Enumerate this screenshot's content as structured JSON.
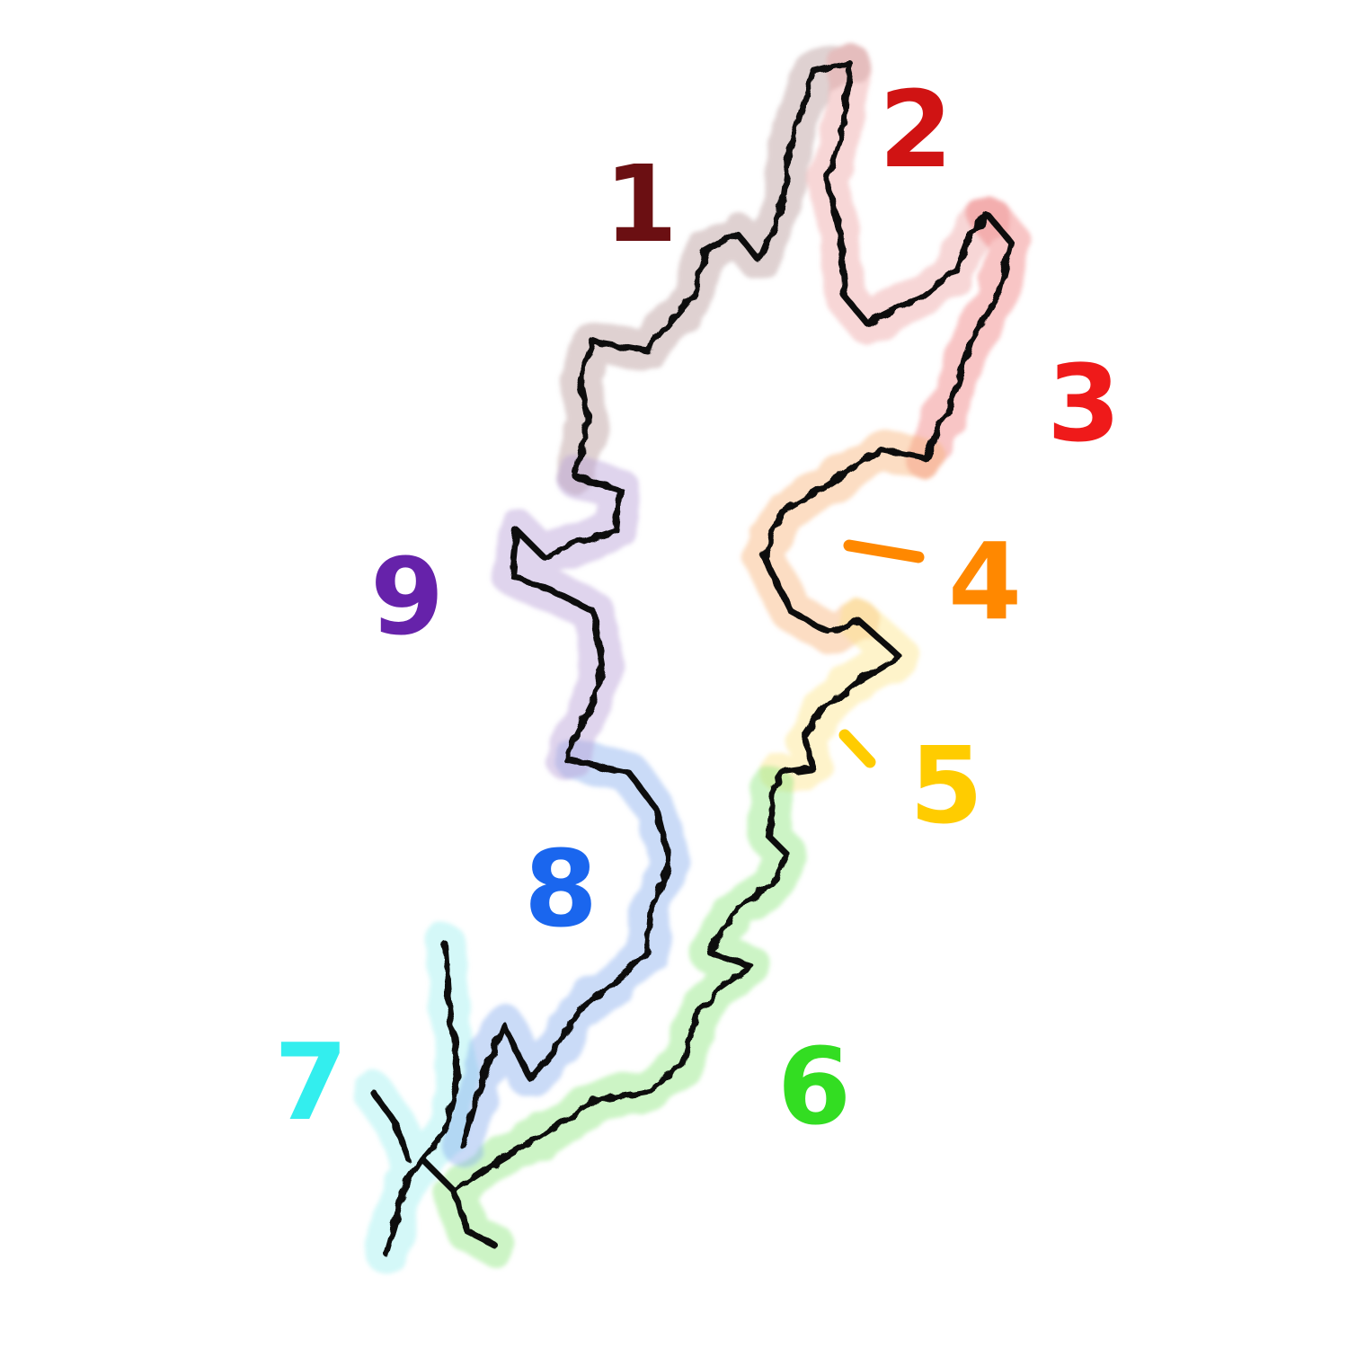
{
  "segments": [
    {
      "label": "1",
      "color": "#6b0f12",
      "glow": "#b99a9a"
    },
    {
      "label": "2",
      "color": "#d01313",
      "glow": "#eda5a5"
    },
    {
      "label": "3",
      "color": "#ef1a1a",
      "glow": "#f07e7e"
    },
    {
      "label": "4",
      "color": "#ff8800",
      "glow": "#f8b37a"
    },
    {
      "label": "5",
      "color": "#ffcc00",
      "glow": "#fde58a"
    },
    {
      "label": "6",
      "color": "#33dd22",
      "glow": "#8ee67e"
    },
    {
      "label": "7",
      "color": "#33eeee",
      "glow": "#9ff0f0"
    },
    {
      "label": "8",
      "color": "#1a66ee",
      "glow": "#8ab0ee"
    },
    {
      "label": "9",
      "color": "#6622aa",
      "glow": "#b9a0d8"
    }
  ]
}
